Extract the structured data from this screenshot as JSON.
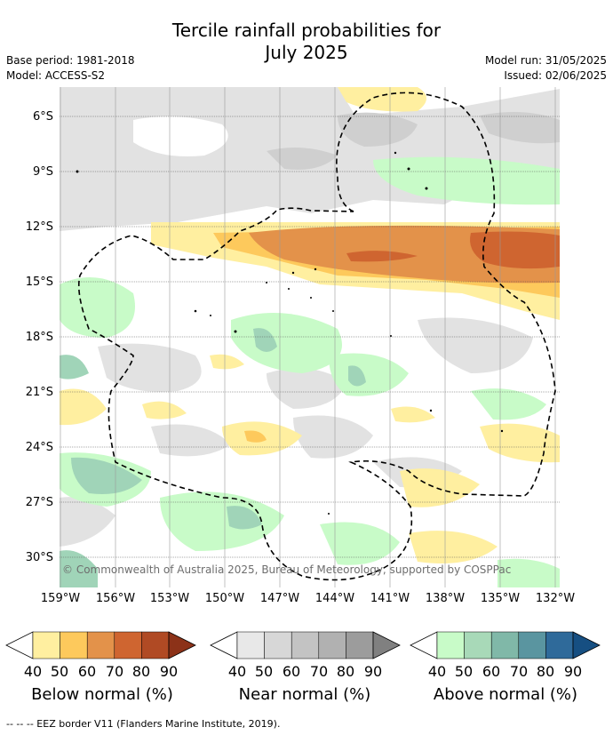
{
  "title_line1": "Tercile rainfall probabilities for",
  "title_line2": "July 2025",
  "base_period": "Base period: 1981-2018",
  "model": "Model: ACCESS-S2",
  "model_run": "Model run: 31/05/2025",
  "issued": "Issued: 02/06/2025",
  "latitudes": [
    "6°S",
    "9°S",
    "12°S",
    "15°S",
    "18°S",
    "21°S",
    "24°S",
    "27°S",
    "30°S"
  ],
  "longitudes": [
    "159°W",
    "156°W",
    "153°W",
    "150°W",
    "147°W",
    "144°W",
    "141°W",
    "138°W",
    "135°W",
    "132°W"
  ],
  "copyright": "© Commonwealth of Australia 2025, Bureau of Meteorology, supported by COSPPac",
  "legends": [
    {
      "title": "Below normal (%)",
      "ticks": [
        "40",
        "50",
        "60",
        "70",
        "80",
        "90"
      ],
      "colors": [
        "#ffefa0",
        "#fdc95c",
        "#e3924a",
        "#cf6530",
        "#b04a24",
        "#8c3218"
      ]
    },
    {
      "title": "Near normal (%)",
      "ticks": [
        "40",
        "50",
        "60",
        "70",
        "80",
        "90"
      ],
      "colors": [
        "#e8e8e8",
        "#d7d7d7",
        "#c3c3c3",
        "#b1b1b1",
        "#9c9c9c",
        "#808080"
      ]
    },
    {
      "title": "Above normal (%)",
      "ticks": [
        "40",
        "50",
        "60",
        "70",
        "80",
        "90"
      ],
      "colors": [
        "#c8fbc8",
        "#a8d9b8",
        "#80b8a8",
        "#5a95a0",
        "#2f6a9a",
        "#164f82"
      ]
    }
  ],
  "footnote": "--  --  -- EEZ border V11 (Flanders Marine Institute, 2019).",
  "colors": {
    "below": [
      "#ffefa0",
      "#fdc95c",
      "#e3924a",
      "#cf6530"
    ],
    "near": [
      "#e2e2e2",
      "#cfcfcf"
    ],
    "above": [
      "#c8fbc8",
      "#a0d4b8"
    ]
  }
}
